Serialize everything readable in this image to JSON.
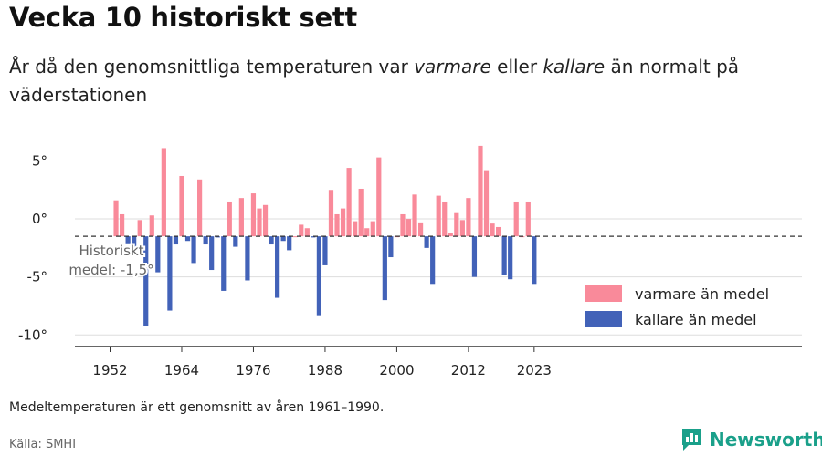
{
  "header": {
    "title": "Vecka 10 historiskt sett",
    "subtitle_pre": "År då den genomsnittliga temperaturen var ",
    "subtitle_warm": "varmare",
    "subtitle_mid": " eller ",
    "subtitle_cold": "kallare",
    "subtitle_post": " än normalt på väderstationen"
  },
  "footer": {
    "note": "Medeltemperaturen är ett genomsnitt av åren 1961–1990.",
    "source": "Källa: SMHI",
    "brand": "Newsworthy"
  },
  "colors": {
    "warm": "#f98a9a",
    "cold": "#4262b8",
    "grid": "#dddddd",
    "axis": "#333333",
    "reference": "#333333"
  },
  "chart_data": {
    "type": "bar",
    "baseline": -1.5,
    "annotation": {
      "line1": "Historiskt",
      "line2": "medel: -1,5°"
    },
    "ylim": [
      -11,
      7
    ],
    "y_ticks": [
      5,
      0,
      -5,
      -10
    ],
    "y_tick_labels": [
      "5°",
      "0°",
      "-5°",
      "-10°"
    ],
    "x_ticks": [
      1952,
      1964,
      1976,
      1988,
      2000,
      2012,
      2023
    ],
    "legend": {
      "position": "bottom-right",
      "warm_label": "varmare än medel",
      "cold_label": "kallare än medel"
    },
    "years": [
      1952,
      1953,
      1954,
      1955,
      1956,
      1957,
      1958,
      1959,
      1960,
      1961,
      1962,
      1963,
      1964,
      1965,
      1966,
      1967,
      1968,
      1969,
      1970,
      1971,
      1972,
      1973,
      1974,
      1975,
      1976,
      1977,
      1978,
      1979,
      1980,
      1981,
      1982,
      1983,
      1984,
      1985,
      1986,
      1987,
      1988,
      1989,
      1990,
      1991,
      1992,
      1993,
      1994,
      1995,
      1996,
      1997,
      1998,
      1999,
      2000,
      2001,
      2002,
      2003,
      2004,
      2005,
      2006,
      2007,
      2008,
      2009,
      2010,
      2011,
      2012,
      2013,
      2014,
      2015,
      2016,
      2017,
      2018,
      2019,
      2020,
      2021,
      2022,
      2023
    ],
    "values": [
      null,
      1.6,
      0.4,
      -2.1,
      -2.4,
      -0.1,
      -9.2,
      0.3,
      -4.6,
      6.1,
      -7.9,
      -2.2,
      3.7,
      -1.9,
      -3.8,
      3.4,
      -2.2,
      -4.4,
      -1.6,
      -6.2,
      1.5,
      -2.4,
      1.8,
      -5.3,
      2.2,
      0.9,
      1.2,
      -2.2,
      -6.8,
      -1.9,
      -2.7,
      -1.5,
      -0.5,
      -0.8,
      -1.6,
      -8.3,
      -4.0,
      2.5,
      0.4,
      0.9,
      4.4,
      -0.2,
      2.6,
      -0.8,
      -0.2,
      5.3,
      -7.0,
      -3.3,
      -1.5,
      0.4,
      0.0,
      2.1,
      -0.3,
      -2.5,
      -5.6,
      2.0,
      1.5,
      -1.2,
      0.5,
      -0.1,
      1.8,
      -5.0,
      6.3,
      4.2,
      -0.4,
      -0.7,
      -4.8,
      -5.2,
      1.5,
      -1.5,
      1.5,
      -5.6
    ]
  }
}
